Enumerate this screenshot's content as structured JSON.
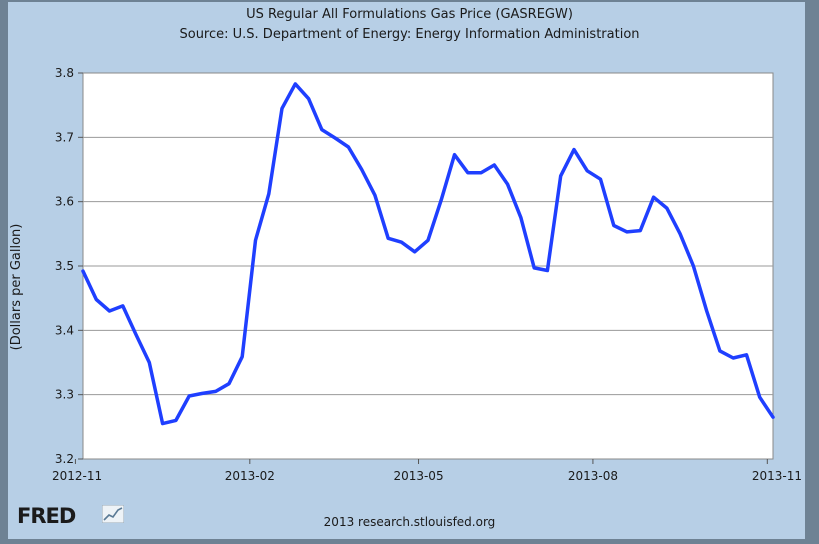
{
  "chart_data": {
    "type": "line",
    "title": "US Regular All Formulations Gas Price (GASREGW)",
    "subtitle": "Source: U.S. Department of Energy: Energy Information Administration",
    "xlabel": "",
    "ylabel": "(Dollars per Gallon)",
    "ylim": [
      3.2,
      3.8
    ],
    "xlim": [
      "2012-11-05",
      "2013-11-04"
    ],
    "y_ticks": [
      "3.2",
      "3.3",
      "3.4",
      "3.5",
      "3.6",
      "3.7",
      "3.8"
    ],
    "x_ticks": [
      "2012-11",
      "2013-02",
      "2013-05",
      "2013-08",
      "2013-11"
    ],
    "grid": "horizontal",
    "line_color": "#1f3fff",
    "x": [
      "2012-11-05",
      "2012-11-12",
      "2012-11-19",
      "2012-11-26",
      "2012-12-03",
      "2012-12-10",
      "2012-12-17",
      "2012-12-24",
      "2012-12-31",
      "2013-01-07",
      "2013-01-14",
      "2013-01-21",
      "2013-01-28",
      "2013-02-04",
      "2013-02-11",
      "2013-02-18",
      "2013-02-25",
      "2013-03-04",
      "2013-03-11",
      "2013-03-18",
      "2013-03-25",
      "2013-04-01",
      "2013-04-08",
      "2013-04-15",
      "2013-04-22",
      "2013-04-29",
      "2013-05-06",
      "2013-05-13",
      "2013-05-20",
      "2013-05-27",
      "2013-06-03",
      "2013-06-10",
      "2013-06-17",
      "2013-06-24",
      "2013-07-01",
      "2013-07-08",
      "2013-07-15",
      "2013-07-22",
      "2013-07-29",
      "2013-08-05",
      "2013-08-12",
      "2013-08-19",
      "2013-08-26",
      "2013-09-02",
      "2013-09-09",
      "2013-09-16",
      "2013-09-23",
      "2013-09-30",
      "2013-10-07",
      "2013-10-14",
      "2013-10-21",
      "2013-10-28",
      "2013-11-04"
    ],
    "values": [
      3.492,
      3.448,
      3.43,
      3.438,
      3.393,
      3.35,
      3.255,
      3.26,
      3.298,
      3.302,
      3.305,
      3.317,
      3.359,
      3.54,
      3.612,
      3.745,
      3.783,
      3.76,
      3.712,
      3.699,
      3.685,
      3.65,
      3.61,
      3.543,
      3.537,
      3.522,
      3.54,
      3.603,
      3.673,
      3.645,
      3.645,
      3.657,
      3.627,
      3.575,
      3.497,
      3.493,
      3.64,
      3.681,
      3.648,
      3.635,
      3.563,
      3.553,
      3.555,
      3.607,
      3.59,
      3.55,
      3.5,
      3.43,
      3.368,
      3.357,
      3.362,
      3.296,
      3.265
    ]
  },
  "footer": {
    "logo_text": "FRED",
    "logo_icon": "chart-line-icon",
    "credit": "2013 research.stlouisfed.org"
  }
}
